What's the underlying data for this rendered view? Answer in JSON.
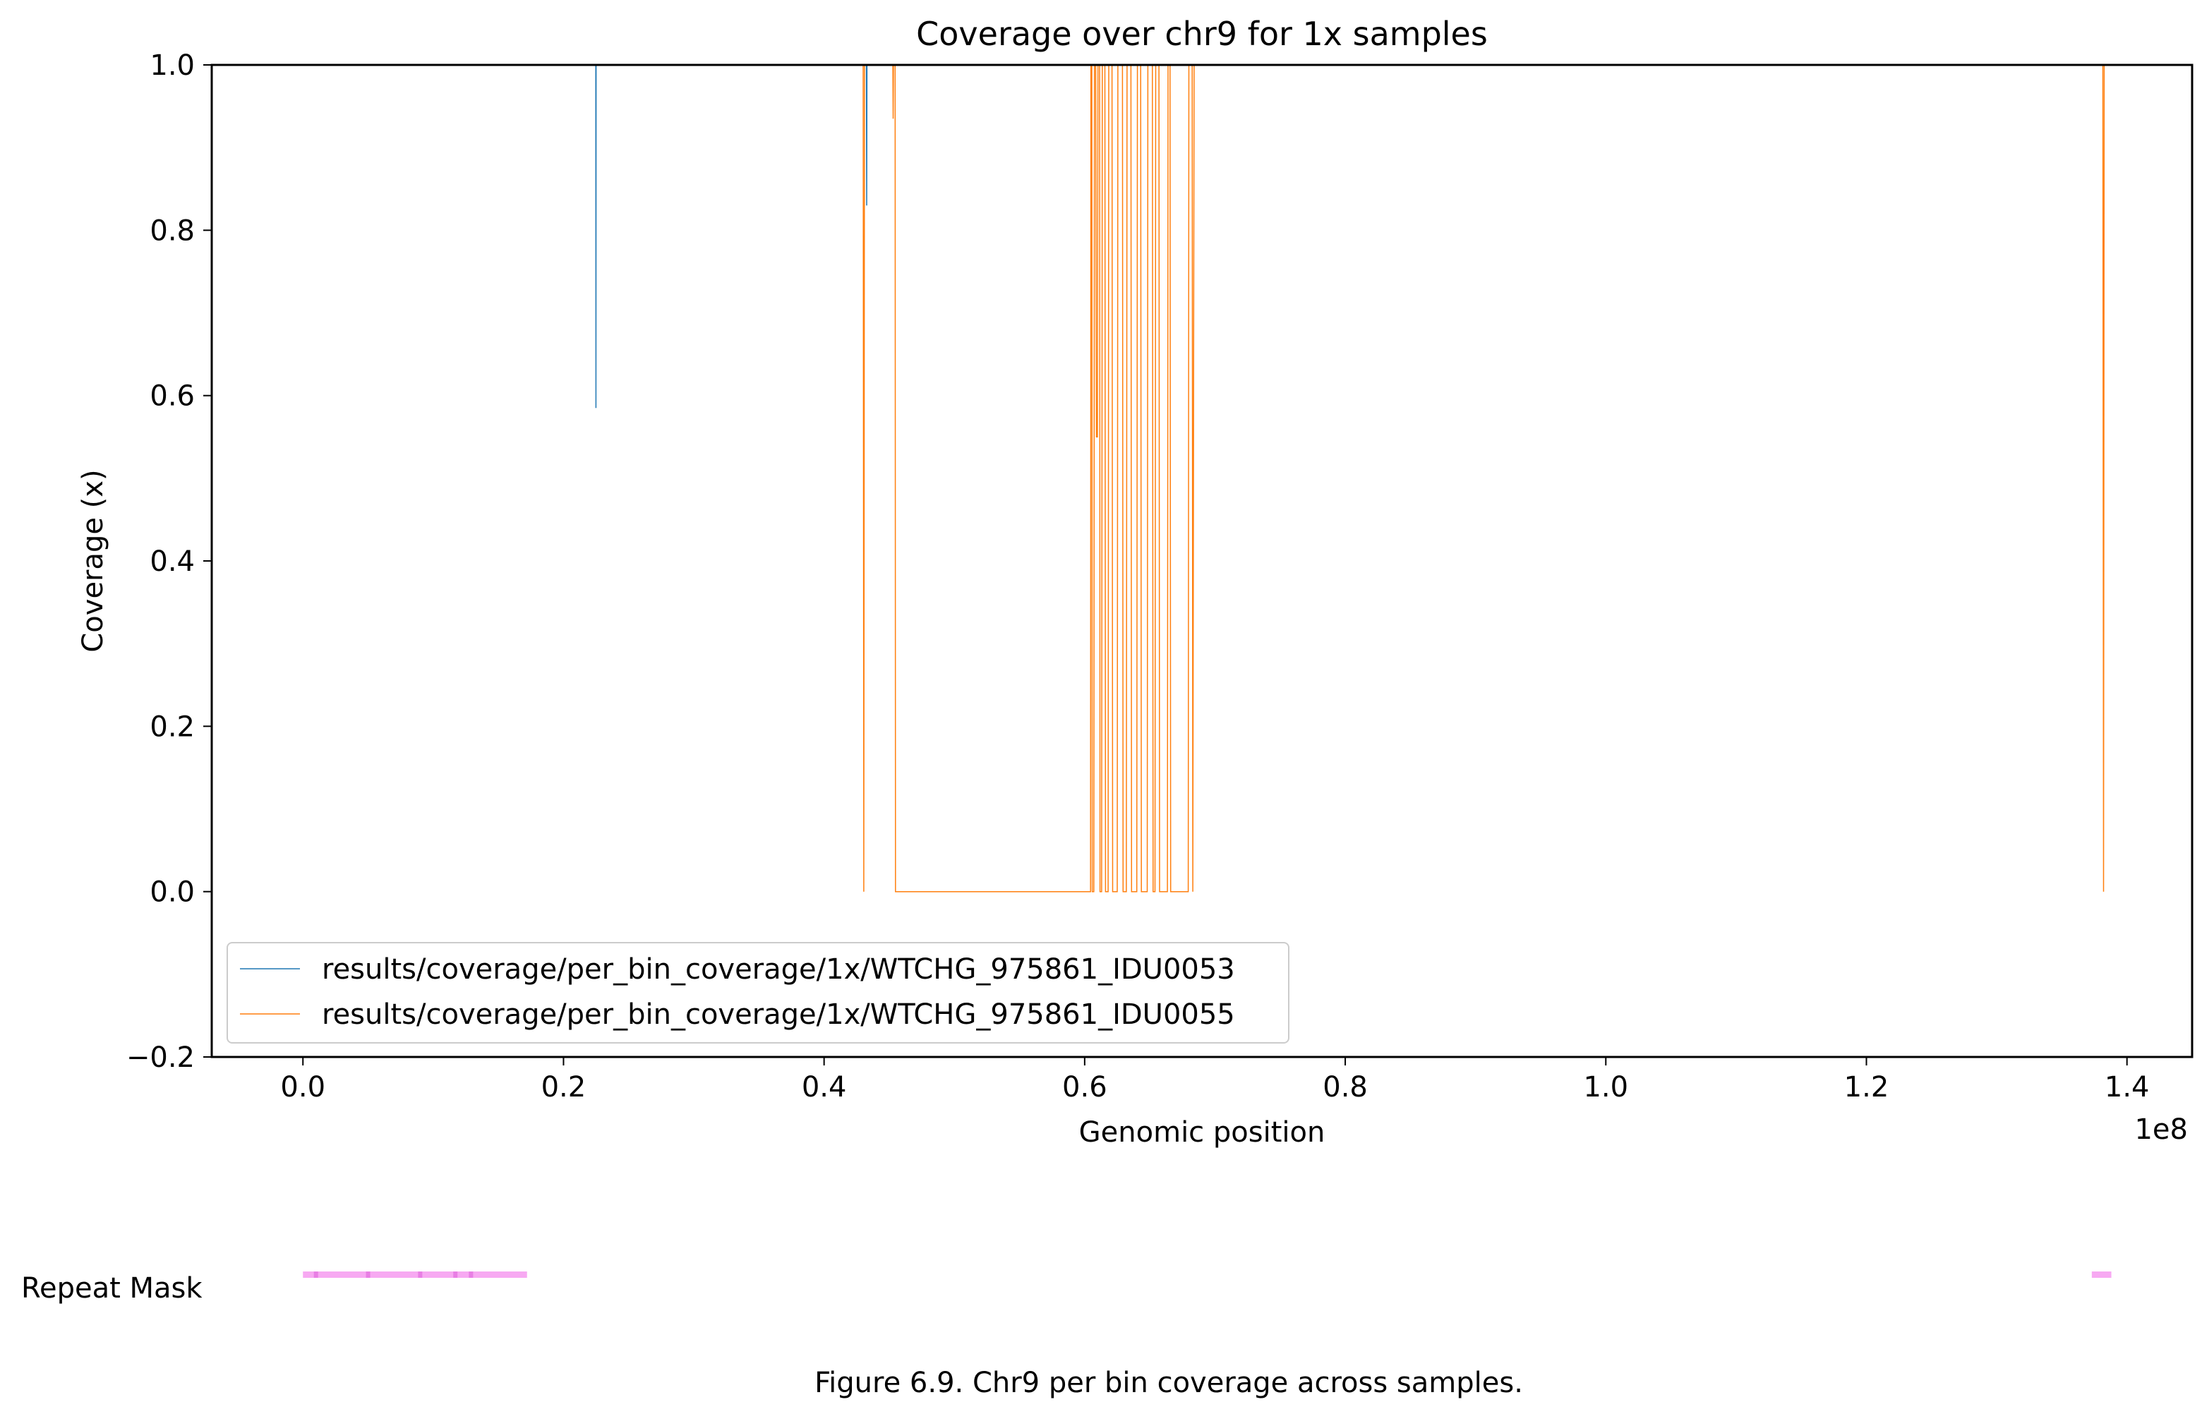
{
  "chart_data": {
    "type": "line",
    "title": "Coverage over chr9 for 1x samples",
    "xlabel": "Genomic position",
    "ylabel": "Coverage (x)",
    "x_offset_label": "1e8",
    "xlim": [
      -0.07,
      1.45
    ],
    "ylim": [
      -0.2,
      1.0
    ],
    "xticks": [
      0.0,
      0.2,
      0.4,
      0.6,
      0.8,
      1.0,
      1.2,
      1.4
    ],
    "xtick_labels": [
      "0.0",
      "0.2",
      "0.4",
      "0.6",
      "0.8",
      "1.0",
      "1.2",
      "1.4"
    ],
    "yticks": [
      -0.2,
      0.0,
      0.2,
      0.4,
      0.6,
      0.8,
      1.0
    ],
    "ytick_labels": [
      "−0.2",
      "0.0",
      "0.2",
      "0.4",
      "0.6",
      "0.8",
      "1.0"
    ],
    "grid": false,
    "legend_position": "bottom-left",
    "series": [
      {
        "name": "results/coverage/per_bin_coverage/1x/WTCHG_975861_IDU0053",
        "color": "#1f77b4",
        "x": [
          0.0,
          0.2248,
          0.2249,
          0.225,
          0.226,
          0.4325,
          0.4327,
          0.4329,
          0.4335,
          1.45
        ],
        "y": [
          1.0,
          1.0,
          0.585,
          1.0,
          1.0,
          1.0,
          0.83,
          1.0,
          1.0,
          1.0
        ]
      },
      {
        "name": "results/coverage/per_bin_coverage/1x/WTCHG_975861_IDU0055",
        "color": "#ff7f0e",
        "x": [
          0.0,
          0.43,
          0.4305,
          0.431,
          0.4528,
          0.453,
          0.4532,
          0.4545,
          0.4548,
          0.6045,
          0.6048,
          0.6055,
          0.6058,
          0.607,
          0.6075,
          0.6085,
          0.609,
          0.6098,
          0.6102,
          0.6115,
          0.6118,
          0.613,
          0.6135,
          0.6155,
          0.616,
          0.618,
          0.6185,
          0.621,
          0.6215,
          0.625,
          0.6255,
          0.629,
          0.6295,
          0.632,
          0.6325,
          0.6355,
          0.636,
          0.64,
          0.6405,
          0.643,
          0.6435,
          0.648,
          0.6485,
          0.652,
          0.6525,
          0.654,
          0.6545,
          0.657,
          0.6575,
          0.6635,
          0.664,
          0.6655,
          0.666,
          0.6795,
          0.68,
          0.6825,
          0.683,
          0.684,
          1.3815,
          1.382,
          1.3825,
          1.45
        ],
        "y": [
          1.0,
          1.0,
          0.0,
          1.0,
          1.0,
          0.935,
          1.0,
          1.0,
          0.0,
          0.0,
          1.0,
          1.0,
          0.0,
          0.0,
          1.0,
          1.0,
          0.55,
          0.55,
          1.0,
          1.0,
          0.0,
          0.0,
          1.0,
          1.0,
          0.0,
          0.0,
          1.0,
          1.0,
          0.0,
          0.0,
          1.0,
          1.0,
          0.0,
          0.0,
          1.0,
          1.0,
          0.0,
          0.0,
          1.0,
          1.0,
          0.0,
          0.0,
          1.0,
          1.0,
          0.0,
          0.0,
          1.0,
          1.0,
          0.0,
          0.0,
          1.0,
          1.0,
          0.0,
          0.0,
          1.0,
          1.0,
          0.0,
          1.0,
          1.0,
          0.0,
          1.0,
          1.0
        ]
      }
    ],
    "repeat_mask": {
      "label": "Repeat Mask",
      "color": "#f7a9f2",
      "dot_color": "#e87fe4",
      "intervals": [
        [
          0.0,
          0.172
        ],
        [
          1.373,
          1.388
        ]
      ],
      "marks": [
        0.01,
        0.05,
        0.09,
        0.117,
        0.129
      ]
    }
  },
  "caption": "Figure 6.9. Chr9 per bin coverage across samples."
}
